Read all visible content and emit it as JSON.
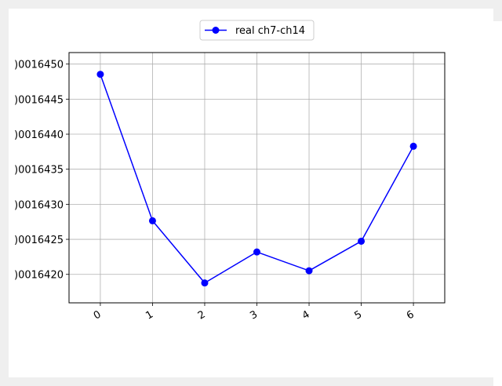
{
  "chart_data": {
    "type": "line",
    "x": [
      0,
      1,
      2,
      3,
      4,
      5,
      6
    ],
    "x_tick_labels": [
      "0",
      "1",
      "2",
      "3",
      "4",
      "5",
      "6"
    ],
    "series": [
      {
        "name": "real ch7-ch14",
        "values": [
          1.00016448542,
          1.00016427646,
          1.00016418778,
          1.00016423197,
          1.00016420521,
          1.0001642473,
          1.00016438279
        ],
        "color": "#0000ff",
        "marker": "circle"
      }
    ],
    "y_ticks": [
      1.0001642,
      1.00016425,
      1.0001643,
      1.00016435,
      1.0001644,
      1.00016445,
      1.0001645
    ],
    "y_tick_labels": [
      ")0016420",
      ")0016425",
      ")0016430",
      ")0016435",
      ")0016440",
      ")0016445",
      ")0016450"
    ],
    "xlim": [
      -0.6,
      6.6
    ],
    "ylim": [
      1.0001641594,
      1.00016451643
    ],
    "grid": true,
    "legend_position": "top-center",
    "title": "",
    "xlabel": "",
    "ylabel": ""
  }
}
